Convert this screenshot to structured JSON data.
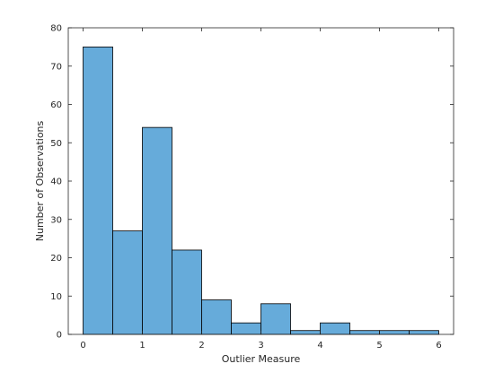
{
  "chart_data": {
    "type": "bar",
    "subtype": "histogram",
    "xlabel": "Outlier Measure",
    "ylabel": "Number of Observations",
    "xlim": [
      -0.25,
      6.25
    ],
    "ylim": [
      0,
      80
    ],
    "xticks": [
      0,
      1,
      2,
      3,
      4,
      5,
      6
    ],
    "yticks": [
      0,
      10,
      20,
      30,
      40,
      50,
      60,
      70,
      80
    ],
    "bin_edges": [
      0,
      0.5,
      1,
      1.5,
      2,
      2.5,
      3,
      3.5,
      4,
      4.5,
      5,
      5.5,
      6
    ],
    "values": [
      75,
      27,
      54,
      22,
      9,
      3,
      8,
      1,
      3,
      1,
      1,
      1
    ],
    "bar_color": "#66abda",
    "edge_color": "#000000",
    "grid": false,
    "box": true
  }
}
